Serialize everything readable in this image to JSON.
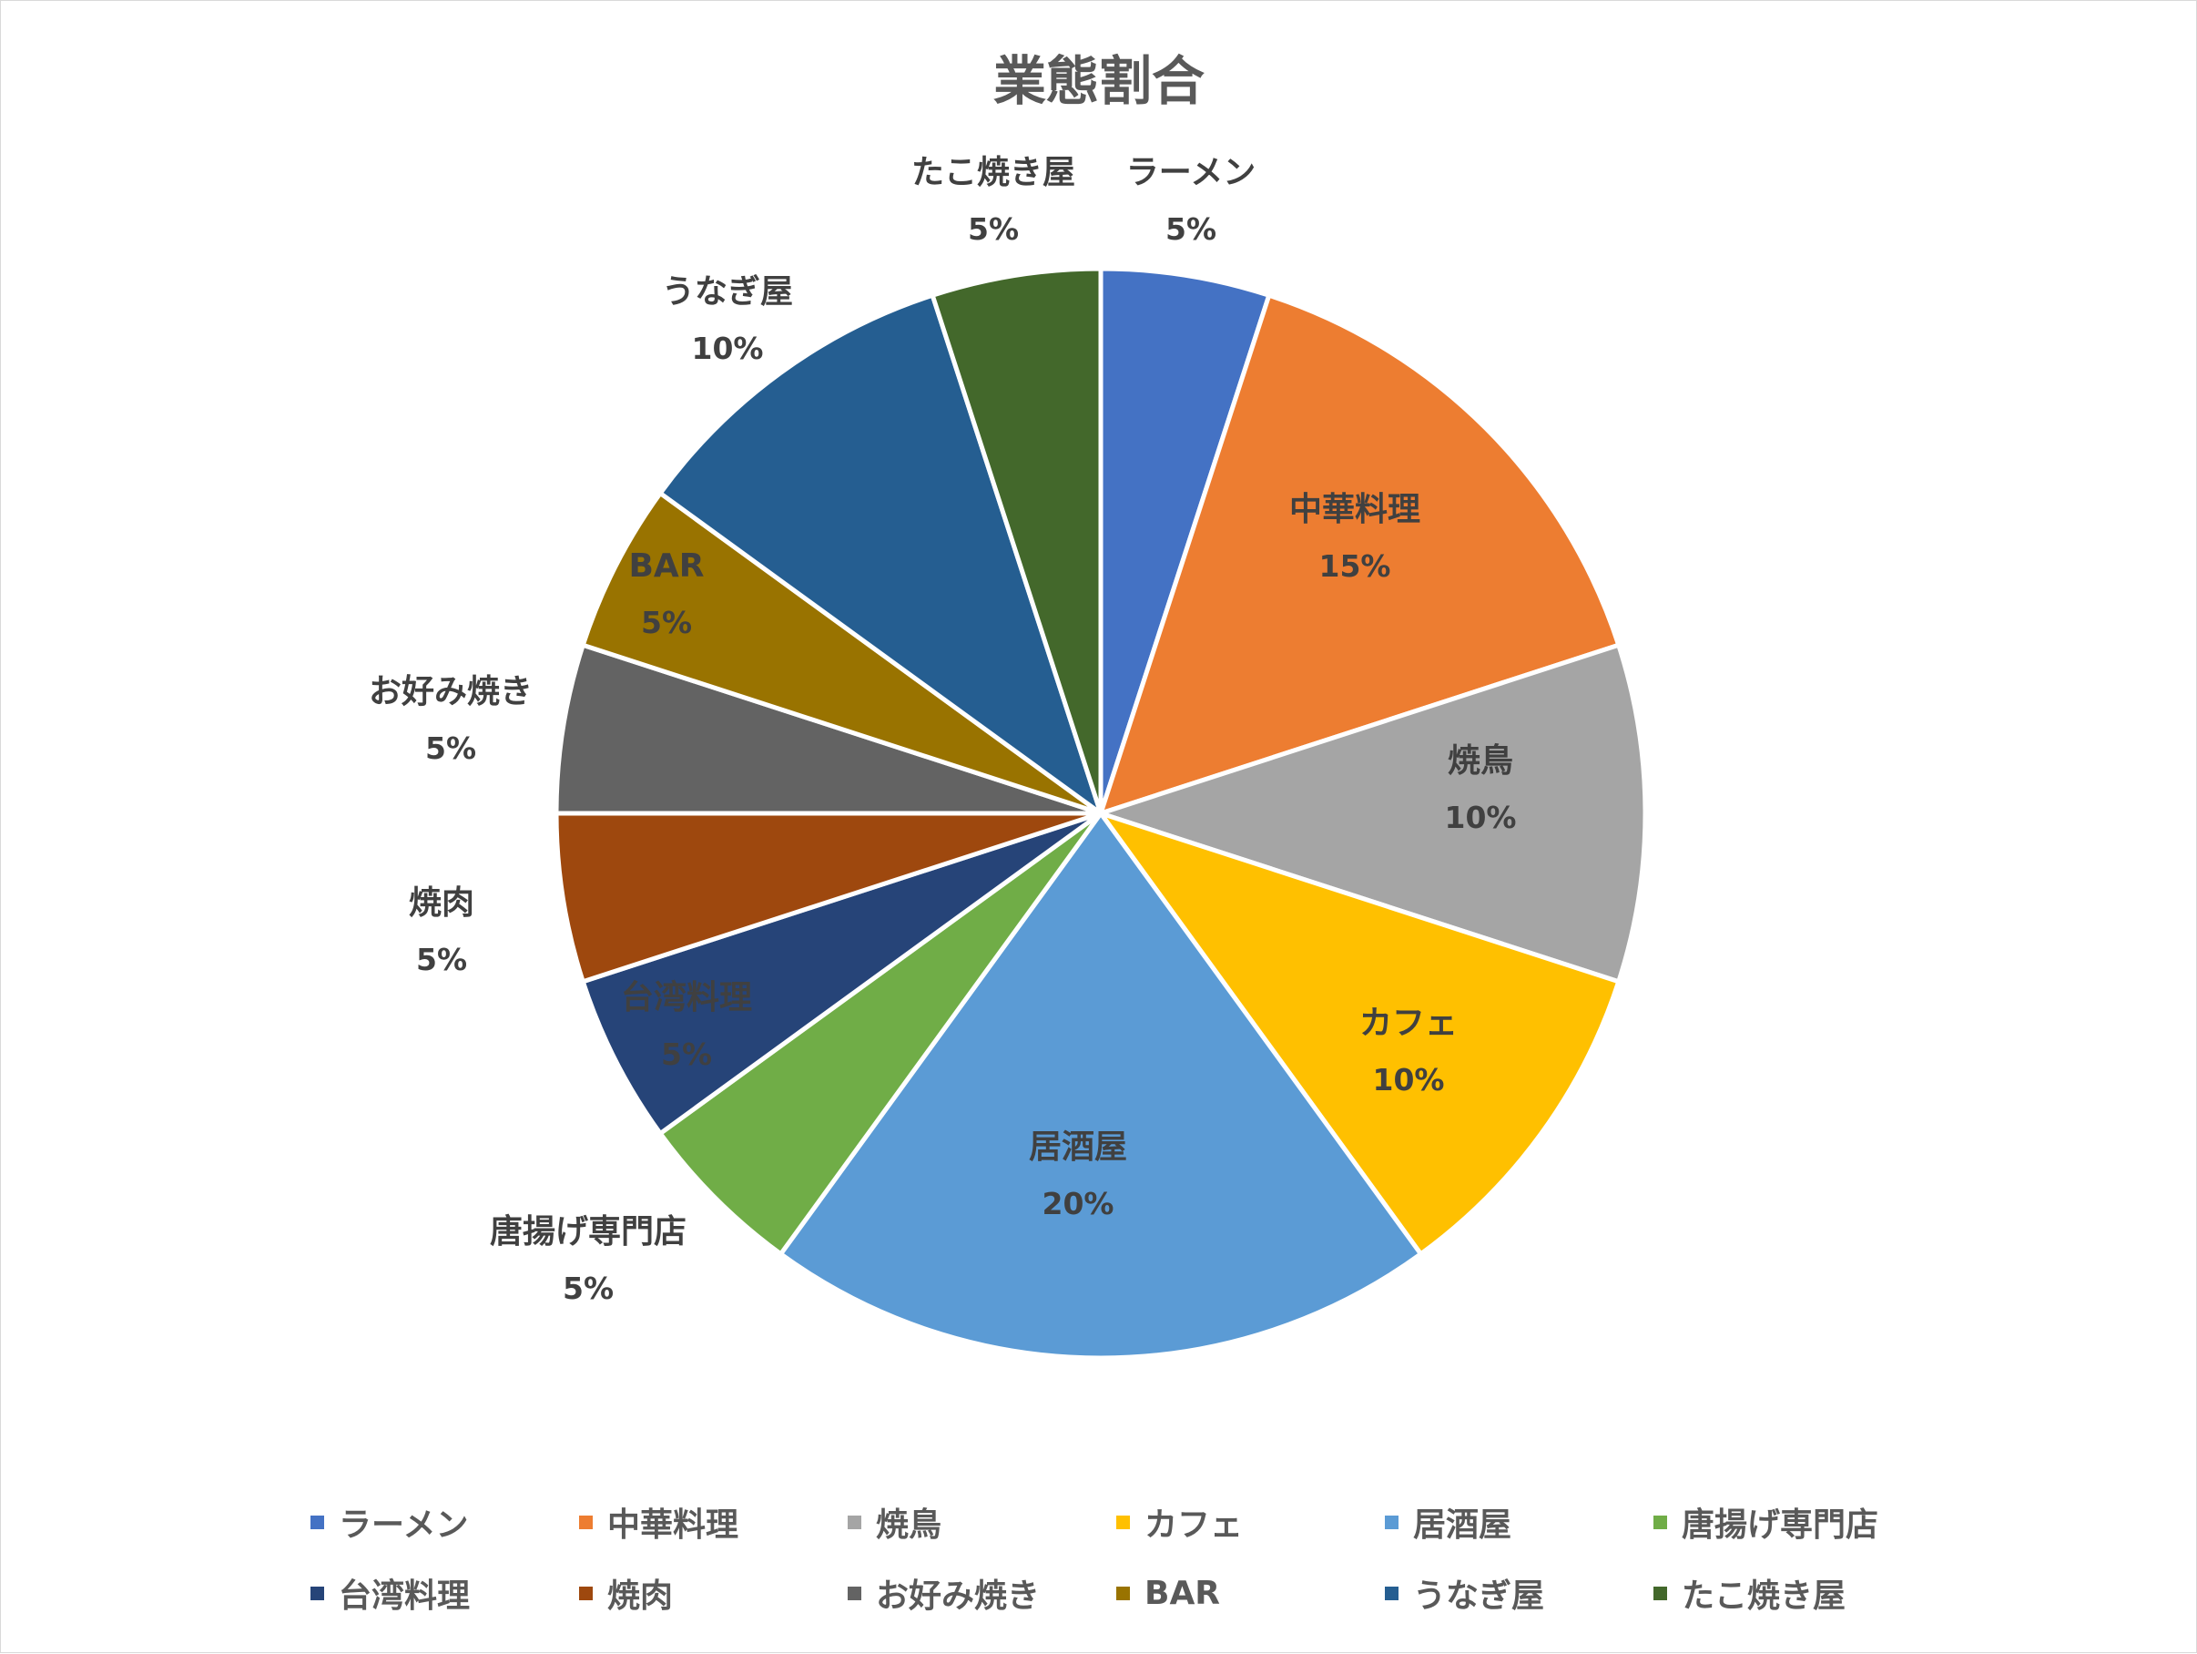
{
  "chart_data": {
    "type": "pie",
    "title": "業態割合",
    "categories": [
      "ラーメン",
      "中華料理",
      "焼鳥",
      "カフェ",
      "居酒屋",
      "唐揚げ専門店",
      "台湾料理",
      "焼肉",
      "お好み焼き",
      "BAR",
      "うなぎ屋",
      "たこ焼き屋"
    ],
    "values": [
      5,
      15,
      10,
      10,
      20,
      5,
      5,
      5,
      5,
      5,
      10,
      5
    ],
    "data_labels": [
      "5%",
      "15%",
      "10%",
      "10%",
      "20%",
      "5%",
      "5%",
      "5%",
      "5%",
      "5%",
      "10%",
      "5%"
    ],
    "colors": [
      "#4472C4",
      "#ED7D31",
      "#A5A5A5",
      "#FFC000",
      "#5B9BD5",
      "#70AD47",
      "#264478",
      "#9E480E",
      "#636363",
      "#997300",
      "#255E91",
      "#43682B"
    ],
    "start_angle": "12 o'clock",
    "direction": "clockwise",
    "legend_position": "bottom",
    "text_color": "#404040"
  }
}
